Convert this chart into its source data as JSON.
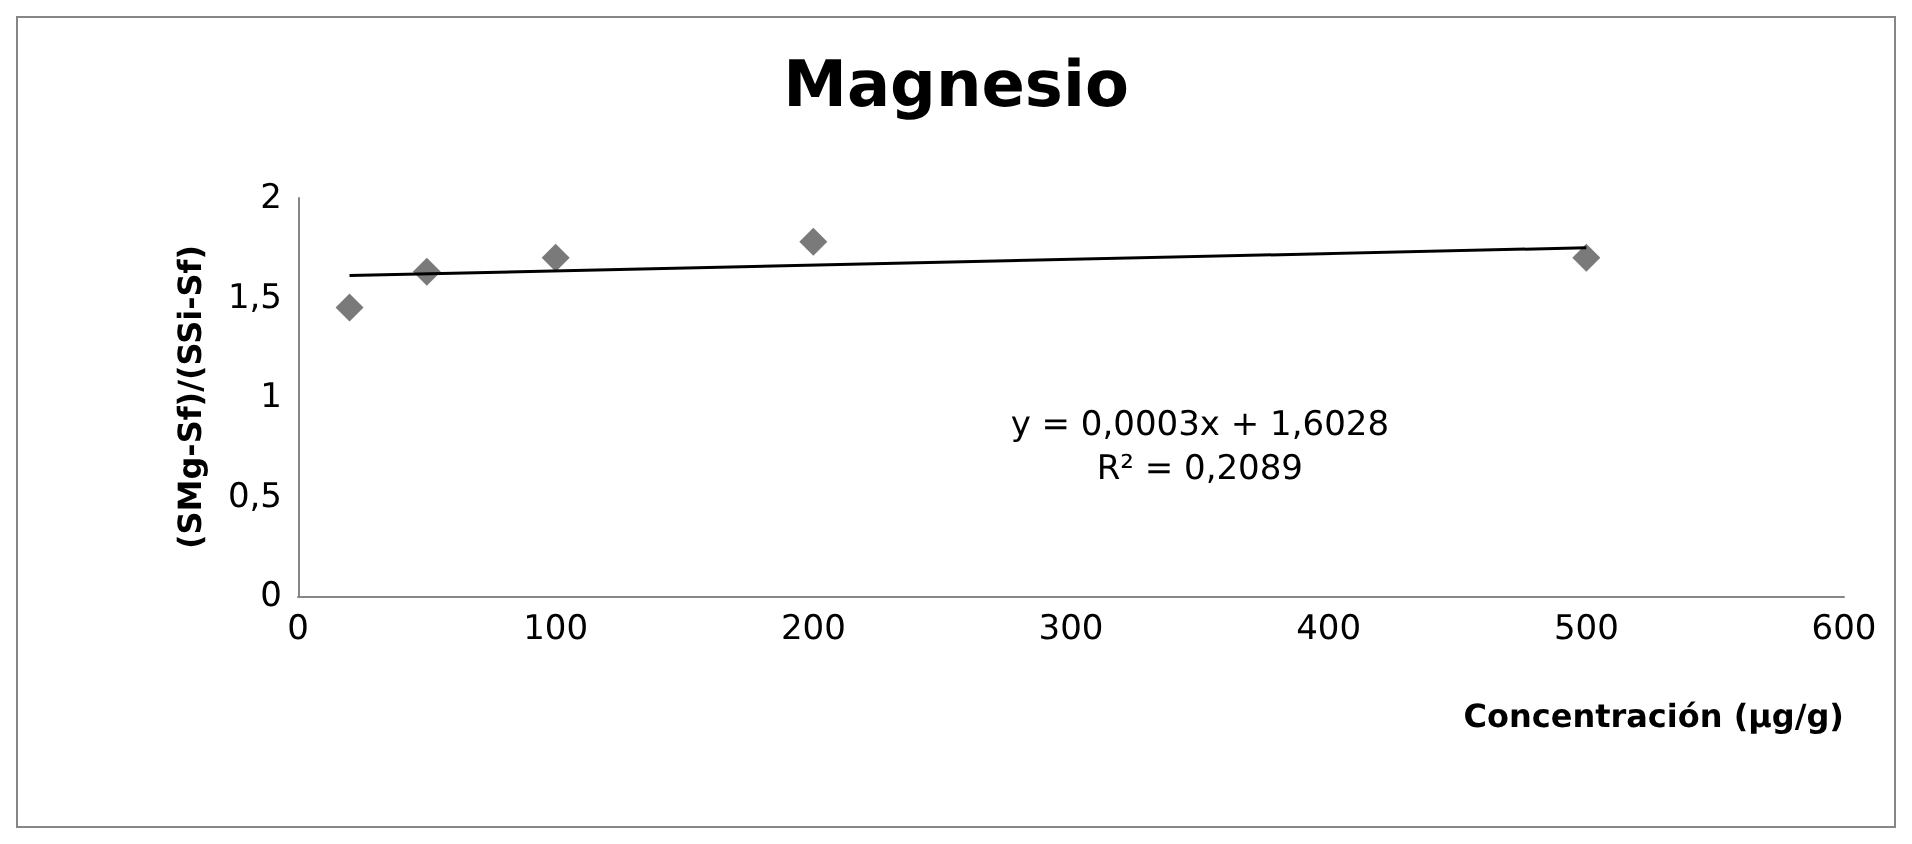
{
  "chart_data": {
    "type": "scatter",
    "title": "Magnesio",
    "xlabel": "Concentración (µg/g)",
    "ylabel": "(SMg-Sf)/(SSi-Sf)",
    "xlim": [
      0,
      600
    ],
    "xticks": [
      0,
      100,
      200,
      300,
      400,
      500,
      600
    ],
    "ylim": [
      0,
      2
    ],
    "yticks": [
      0,
      {
        "value": 0.5,
        "label": "0,5"
      },
      1,
      {
        "value": 1.5,
        "label": "1,5"
      },
      2
    ],
    "grid": false,
    "series": [
      {
        "color": "#595959",
        "marker": "diamond",
        "x": [
          20,
          50,
          100,
          200,
          500
        ],
        "values": [
          1.45,
          1.63,
          1.7,
          1.78,
          1.7
        ]
      },
      {
        "type": "line",
        "color": "#000000",
        "x": [
          20,
          500
        ],
        "values": [
          1.61,
          1.75
        ]
      }
    ],
    "annotations": [
      "y = 0,0003x + 1,6028\nR² = 0,2089"
    ]
  }
}
